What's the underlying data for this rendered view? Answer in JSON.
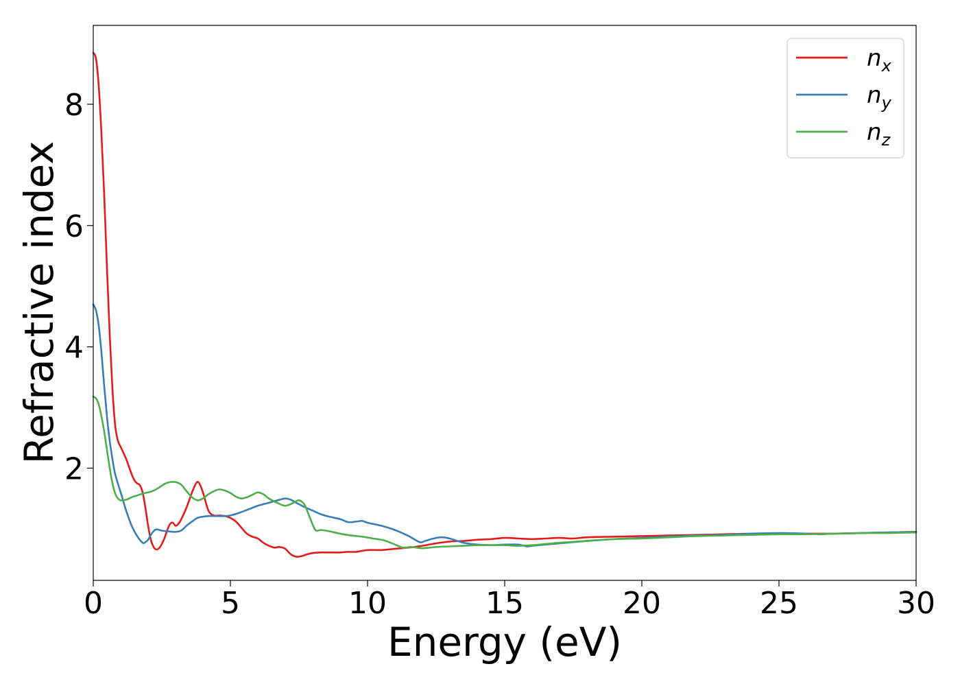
{
  "chart_data": {
    "type": "line",
    "title": "",
    "xlabel": "Energy (eV)",
    "ylabel": "Refractive index",
    "xlim": [
      0,
      30
    ],
    "ylim": [
      0.15,
      9.3
    ],
    "xticks": [
      "0",
      "5",
      "10",
      "15",
      "20",
      "25",
      "30"
    ],
    "yticks": [
      "2",
      "4",
      "6",
      "8"
    ],
    "grid": false,
    "legend_position": "top-right",
    "series": [
      {
        "name": "n_x",
        "base": "n",
        "sub": "x",
        "color": "#e41a1c",
        "points": [
          [
            0,
            8.85
          ],
          [
            0.1,
            8.75
          ],
          [
            0.2,
            8.3
          ],
          [
            0.3,
            7.5
          ],
          [
            0.4,
            6.5
          ],
          [
            0.5,
            5.3
          ],
          [
            0.6,
            4.2
          ],
          [
            0.7,
            3.3
          ],
          [
            0.8,
            2.7
          ],
          [
            0.9,
            2.45
          ],
          [
            1.0,
            2.35
          ],
          [
            1.2,
            2.15
          ],
          [
            1.4,
            1.9
          ],
          [
            1.5,
            1.8
          ],
          [
            1.6,
            1.75
          ],
          [
            1.7,
            1.72
          ],
          [
            1.8,
            1.6
          ],
          [
            1.9,
            1.35
          ],
          [
            2.0,
            1.05
          ],
          [
            2.1,
            0.82
          ],
          [
            2.2,
            0.7
          ],
          [
            2.3,
            0.66
          ],
          [
            2.4,
            0.68
          ],
          [
            2.5,
            0.75
          ],
          [
            2.6,
            0.85
          ],
          [
            2.7,
            0.98
          ],
          [
            2.8,
            1.08
          ],
          [
            2.9,
            1.1
          ],
          [
            3.0,
            1.05
          ],
          [
            3.1,
            1.08
          ],
          [
            3.2,
            1.15
          ],
          [
            3.4,
            1.35
          ],
          [
            3.6,
            1.6
          ],
          [
            3.75,
            1.75
          ],
          [
            3.85,
            1.76
          ],
          [
            4.0,
            1.6
          ],
          [
            4.2,
            1.3
          ],
          [
            4.4,
            1.22
          ],
          [
            4.6,
            1.22
          ],
          [
            4.8,
            1.21
          ],
          [
            5.0,
            1.18
          ],
          [
            5.2,
            1.12
          ],
          [
            5.4,
            1.02
          ],
          [
            5.6,
            0.92
          ],
          [
            5.8,
            0.87
          ],
          [
            6.0,
            0.84
          ],
          [
            6.2,
            0.77
          ],
          [
            6.4,
            0.72
          ],
          [
            6.6,
            0.69
          ],
          [
            6.8,
            0.7
          ],
          [
            7.0,
            0.67
          ],
          [
            7.2,
            0.58
          ],
          [
            7.4,
            0.54
          ],
          [
            7.6,
            0.55
          ],
          [
            7.8,
            0.58
          ],
          [
            8.0,
            0.6
          ],
          [
            8.3,
            0.61
          ],
          [
            8.6,
            0.61
          ],
          [
            9.0,
            0.61
          ],
          [
            9.3,
            0.62
          ],
          [
            9.6,
            0.62
          ],
          [
            10.0,
            0.65
          ],
          [
            10.5,
            0.65
          ],
          [
            11.0,
            0.67
          ],
          [
            11.5,
            0.69
          ],
          [
            12.0,
            0.72
          ],
          [
            12.5,
            0.76
          ],
          [
            13.0,
            0.79
          ],
          [
            13.5,
            0.8
          ],
          [
            14.0,
            0.82
          ],
          [
            14.5,
            0.83
          ],
          [
            15.0,
            0.85
          ],
          [
            15.5,
            0.84
          ],
          [
            16.0,
            0.83
          ],
          [
            16.5,
            0.84
          ],
          [
            17.0,
            0.85
          ],
          [
            17.5,
            0.84
          ],
          [
            18.0,
            0.86
          ],
          [
            19.0,
            0.87
          ],
          [
            20.0,
            0.88
          ],
          [
            21.0,
            0.89
          ],
          [
            22.0,
            0.9
          ],
          [
            23.0,
            0.91
          ],
          [
            24.0,
            0.92
          ],
          [
            25.0,
            0.92
          ],
          [
            26.0,
            0.92
          ],
          [
            27.0,
            0.92
          ],
          [
            28.0,
            0.93
          ],
          [
            29.0,
            0.94
          ],
          [
            30.0,
            0.95
          ]
        ]
      },
      {
        "name": "n_y",
        "base": "n",
        "sub": "y",
        "color": "#377eb8",
        "points": [
          [
            0,
            4.7
          ],
          [
            0.1,
            4.6
          ],
          [
            0.2,
            4.35
          ],
          [
            0.3,
            3.9
          ],
          [
            0.4,
            3.35
          ],
          [
            0.5,
            2.85
          ],
          [
            0.6,
            2.45
          ],
          [
            0.7,
            2.15
          ],
          [
            0.8,
            1.9
          ],
          [
            1.0,
            1.6
          ],
          [
            1.2,
            1.3
          ],
          [
            1.4,
            1.05
          ],
          [
            1.6,
            0.88
          ],
          [
            1.8,
            0.77
          ],
          [
            1.9,
            0.78
          ],
          [
            2.0,
            0.82
          ],
          [
            2.1,
            0.9
          ],
          [
            2.2,
            0.96
          ],
          [
            2.3,
            0.99
          ],
          [
            2.5,
            0.97
          ],
          [
            2.7,
            0.96
          ],
          [
            3.0,
            0.95
          ],
          [
            3.2,
            0.97
          ],
          [
            3.4,
            1.05
          ],
          [
            3.6,
            1.12
          ],
          [
            3.8,
            1.18
          ],
          [
            4.0,
            1.2
          ],
          [
            4.2,
            1.21
          ],
          [
            4.5,
            1.21
          ],
          [
            4.8,
            1.21
          ],
          [
            5.0,
            1.22
          ],
          [
            5.3,
            1.26
          ],
          [
            5.6,
            1.31
          ],
          [
            6.0,
            1.38
          ],
          [
            6.4,
            1.43
          ],
          [
            6.8,
            1.48
          ],
          [
            7.0,
            1.5
          ],
          [
            7.2,
            1.48
          ],
          [
            7.4,
            1.43
          ],
          [
            7.7,
            1.36
          ],
          [
            8.0,
            1.3
          ],
          [
            8.3,
            1.24
          ],
          [
            8.6,
            1.2
          ],
          [
            9.0,
            1.16
          ],
          [
            9.3,
            1.11
          ],
          [
            9.6,
            1.12
          ],
          [
            9.8,
            1.13
          ],
          [
            10.0,
            1.1
          ],
          [
            10.5,
            1.05
          ],
          [
            11.0,
            0.98
          ],
          [
            11.5,
            0.88
          ],
          [
            11.9,
            0.78
          ],
          [
            12.1,
            0.8
          ],
          [
            12.4,
            0.84
          ],
          [
            12.7,
            0.86
          ],
          [
            13.0,
            0.84
          ],
          [
            13.5,
            0.77
          ],
          [
            14.0,
            0.74
          ],
          [
            14.5,
            0.73
          ],
          [
            15.0,
            0.74
          ],
          [
            15.5,
            0.74
          ],
          [
            15.8,
            0.71
          ],
          [
            16.0,
            0.72
          ],
          [
            16.5,
            0.74
          ],
          [
            17.0,
            0.76
          ],
          [
            17.5,
            0.78
          ],
          [
            18.0,
            0.8
          ],
          [
            19.0,
            0.83
          ],
          [
            20.0,
            0.85
          ],
          [
            21.0,
            0.87
          ],
          [
            22.0,
            0.89
          ],
          [
            23.0,
            0.9
          ],
          [
            24.0,
            0.92
          ],
          [
            25.0,
            0.93
          ],
          [
            26.0,
            0.92
          ],
          [
            26.5,
            0.91
          ],
          [
            27.0,
            0.92
          ],
          [
            28.0,
            0.93
          ],
          [
            29.0,
            0.94
          ],
          [
            30.0,
            0.95
          ]
        ]
      },
      {
        "name": "n_z",
        "base": "n",
        "sub": "z",
        "color": "#4daf4a",
        "points": [
          [
            0,
            3.18
          ],
          [
            0.1,
            3.15
          ],
          [
            0.2,
            3.05
          ],
          [
            0.3,
            2.85
          ],
          [
            0.4,
            2.6
          ],
          [
            0.5,
            2.3
          ],
          [
            0.6,
            2.0
          ],
          [
            0.7,
            1.75
          ],
          [
            0.8,
            1.58
          ],
          [
            0.9,
            1.5
          ],
          [
            1.0,
            1.47
          ],
          [
            1.2,
            1.48
          ],
          [
            1.4,
            1.52
          ],
          [
            1.6,
            1.55
          ],
          [
            1.8,
            1.58
          ],
          [
            2.0,
            1.6
          ],
          [
            2.2,
            1.63
          ],
          [
            2.4,
            1.68
          ],
          [
            2.6,
            1.74
          ],
          [
            2.8,
            1.77
          ],
          [
            3.0,
            1.77
          ],
          [
            3.2,
            1.73
          ],
          [
            3.4,
            1.62
          ],
          [
            3.6,
            1.52
          ],
          [
            3.8,
            1.47
          ],
          [
            4.0,
            1.5
          ],
          [
            4.2,
            1.57
          ],
          [
            4.4,
            1.62
          ],
          [
            4.6,
            1.65
          ],
          [
            4.8,
            1.63
          ],
          [
            5.0,
            1.59
          ],
          [
            5.2,
            1.53
          ],
          [
            5.4,
            1.5
          ],
          [
            5.6,
            1.52
          ],
          [
            5.8,
            1.56
          ],
          [
            6.0,
            1.6
          ],
          [
            6.2,
            1.57
          ],
          [
            6.4,
            1.5
          ],
          [
            6.7,
            1.43
          ],
          [
            7.0,
            1.38
          ],
          [
            7.3,
            1.43
          ],
          [
            7.5,
            1.47
          ],
          [
            7.7,
            1.4
          ],
          [
            7.9,
            1.18
          ],
          [
            8.1,
            0.98
          ],
          [
            8.3,
            0.98
          ],
          [
            8.6,
            0.96
          ],
          [
            9.0,
            0.92
          ],
          [
            9.4,
            0.89
          ],
          [
            9.8,
            0.87
          ],
          [
            10.2,
            0.84
          ],
          [
            10.6,
            0.81
          ],
          [
            11.0,
            0.74
          ],
          [
            11.3,
            0.69
          ],
          [
            11.6,
            0.7
          ],
          [
            12.0,
            0.68
          ],
          [
            12.5,
            0.7
          ],
          [
            13.0,
            0.71
          ],
          [
            13.5,
            0.72
          ],
          [
            14.0,
            0.73
          ],
          [
            14.5,
            0.73
          ],
          [
            15.0,
            0.73
          ],
          [
            15.5,
            0.72
          ],
          [
            16.0,
            0.73
          ],
          [
            16.5,
            0.75
          ],
          [
            17.0,
            0.77
          ],
          [
            18.0,
            0.8
          ],
          [
            19.0,
            0.83
          ],
          [
            20.0,
            0.84
          ],
          [
            21.0,
            0.86
          ],
          [
            22.0,
            0.88
          ],
          [
            23.0,
            0.89
          ],
          [
            24.0,
            0.9
          ],
          [
            25.0,
            0.91
          ],
          [
            26.0,
            0.91
          ],
          [
            27.0,
            0.92
          ],
          [
            28.0,
            0.93
          ],
          [
            29.0,
            0.93
          ],
          [
            30.0,
            0.94
          ]
        ]
      }
    ]
  }
}
